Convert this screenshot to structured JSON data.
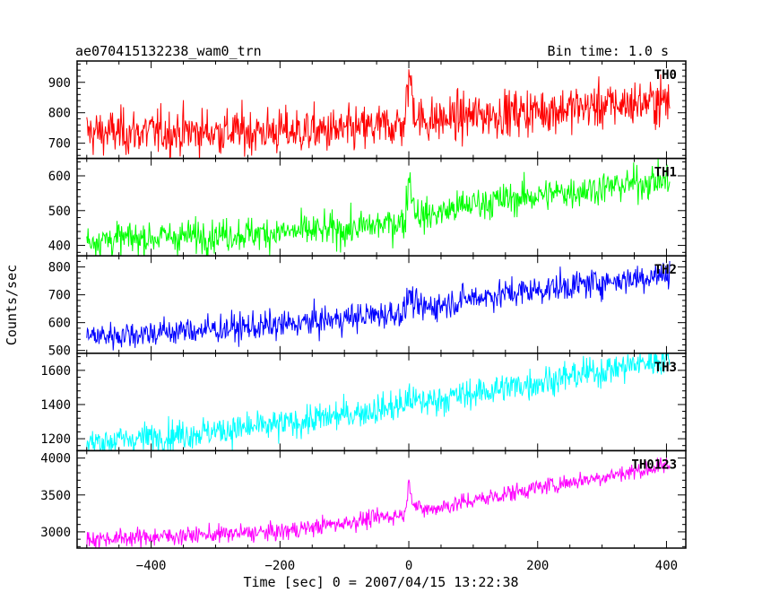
{
  "header": {
    "title": "ae070415132238_wam0_trn",
    "bin_time": "Bin time: 1.0 s"
  },
  "axes": {
    "xlabel": "Time [sec] 0 = 2007/04/15 13:22:38",
    "ylabel": "Counts/sec",
    "xlim": [
      -515,
      430
    ],
    "x_ticks": [
      -400,
      -200,
      0,
      200,
      400
    ],
    "x_tick_labels": [
      "−400",
      "−200",
      "0",
      "200",
      "400"
    ]
  },
  "chart_data": {
    "type": "line",
    "x_range": [
      -500,
      405
    ],
    "bin_time_s": 1.0,
    "series": [
      {
        "name": "TH0",
        "color": "#ff0000",
        "ylim": [
          650,
          970
        ],
        "y_ticks": [
          700,
          800,
          900
        ],
        "base_start": 735,
        "base_end": 830,
        "noise_sd": 38,
        "burst_peak": 960,
        "trend": [
          [
            -500,
            735
          ],
          [
            -100,
            740
          ],
          [
            0,
            765
          ],
          [
            100,
            790
          ],
          [
            405,
            840
          ]
        ]
      },
      {
        "name": "TH1",
        "color": "#00ff00",
        "ylim": [
          370,
          650
        ],
        "y_ticks": [
          400,
          500,
          600
        ],
        "base_start": 415,
        "base_end": 590,
        "noise_sd": 24,
        "burst_peak": 625,
        "trend": [
          [
            -500,
            415
          ],
          [
            -100,
            445
          ],
          [
            0,
            470
          ],
          [
            100,
            520
          ],
          [
            405,
            590
          ]
        ]
      },
      {
        "name": "TH2",
        "color": "#0000ff",
        "ylim": [
          490,
          840
        ],
        "y_ticks": [
          500,
          600,
          700,
          800
        ],
        "base_start": 550,
        "base_end": 775,
        "noise_sd": 26,
        "burst_peak": 720,
        "trend": [
          [
            -500,
            550
          ],
          [
            -200,
            590
          ],
          [
            0,
            640
          ],
          [
            100,
            690
          ],
          [
            405,
            775
          ]
        ]
      },
      {
        "name": "TH3",
        "color": "#00ffff",
        "ylim": [
          1130,
          1700
        ],
        "y_ticks": [
          1200,
          1400,
          1600
        ],
        "base_start": 1175,
        "base_end": 1670,
        "noise_sd": 45,
        "burst_peak": 1460,
        "trend": [
          [
            -500,
            1175
          ],
          [
            -200,
            1280
          ],
          [
            0,
            1400
          ],
          [
            200,
            1530
          ],
          [
            405,
            1670
          ]
        ]
      },
      {
        "name": "TH0123",
        "color": "#ff00ff",
        "ylim": [
          2780,
          4100
        ],
        "y_ticks": [
          3000,
          3500,
          4000
        ],
        "base_start": 2900,
        "base_end": 3900,
        "noise_sd": 60,
        "burst_peak": 3750,
        "trend": [
          [
            -500,
            2900
          ],
          [
            -200,
            3000
          ],
          [
            0,
            3250
          ],
          [
            200,
            3600
          ],
          [
            405,
            3900
          ]
        ]
      }
    ]
  }
}
